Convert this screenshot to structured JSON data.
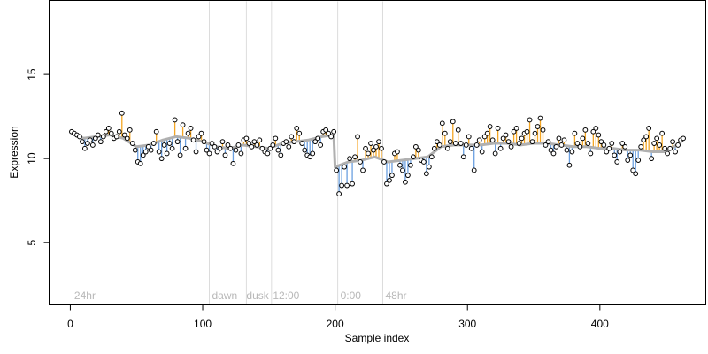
{
  "chart_data": {
    "type": "scatter",
    "title": "",
    "xlabel": "Sample index",
    "ylabel": "Expression",
    "xlim": [
      -16,
      480
    ],
    "ylim": [
      1.3,
      19.4
    ],
    "x_ticks": [
      0,
      100,
      200,
      300,
      400
    ],
    "y_ticks": [
      5,
      10,
      15
    ],
    "grid": false,
    "legend": "none",
    "baseline_color": "#b0b0b0",
    "above_color": "#f5a623",
    "below_color": "#6a9fe0",
    "point_fill": "#ffffff",
    "point_stroke": "#000000",
    "phase_boundaries": [
      105,
      133,
      152,
      202,
      236
    ],
    "phase_labels": [
      {
        "x": 3,
        "text": "24hr"
      },
      {
        "x": 107,
        "text": "dawn"
      },
      {
        "x": 133,
        "text": "dusk"
      },
      {
        "x": 153,
        "text": "12:00"
      },
      {
        "x": 204,
        "text": "0:00"
      },
      {
        "x": 238,
        "text": "48hr"
      }
    ],
    "baseline": [
      [
        1,
        11.5
      ],
      [
        10,
        11.2
      ],
      [
        20,
        11.3
      ],
      [
        30,
        11.4
      ],
      [
        40,
        11.2
      ],
      [
        50,
        10.7
      ],
      [
        60,
        10.8
      ],
      [
        70,
        11.1
      ],
      [
        80,
        11.3
      ],
      [
        90,
        11.2
      ],
      [
        100,
        11.0
      ],
      [
        110,
        10.7
      ],
      [
        120,
        10.6
      ],
      [
        130,
        10.8
      ],
      [
        140,
        10.7
      ],
      [
        150,
        10.6
      ],
      [
        160,
        10.9
      ],
      [
        170,
        11.0
      ],
      [
        180,
        11.1
      ],
      [
        190,
        11.3
      ],
      [
        199,
        11.4
      ],
      [
        200,
        9.5
      ],
      [
        210,
        9.8
      ],
      [
        220,
        9.9
      ],
      [
        230,
        10.1
      ],
      [
        240,
        9.8
      ],
      [
        250,
        9.9
      ],
      [
        260,
        10.0
      ],
      [
        270,
        10.1
      ],
      [
        280,
        10.7
      ],
      [
        290,
        10.8
      ],
      [
        300,
        10.8
      ],
      [
        310,
        10.8
      ],
      [
        320,
        10.9
      ],
      [
        330,
        10.9
      ],
      [
        340,
        10.8
      ],
      [
        350,
        10.9
      ],
      [
        360,
        10.9
      ],
      [
        370,
        10.8
      ],
      [
        380,
        10.7
      ],
      [
        390,
        10.7
      ],
      [
        400,
        10.6
      ],
      [
        410,
        10.6
      ],
      [
        420,
        10.5
      ],
      [
        430,
        10.5
      ],
      [
        440,
        10.4
      ],
      [
        450,
        10.4
      ],
      [
        460,
        10.9
      ],
      [
        464,
        11.2
      ]
    ],
    "points": [
      [
        1,
        11.6
      ],
      [
        3,
        11.5
      ],
      [
        5,
        11.4
      ],
      [
        7,
        11.3
      ],
      [
        9,
        11.0
      ],
      [
        11,
        10.6
      ],
      [
        13,
        10.9
      ],
      [
        15,
        11.1
      ],
      [
        17,
        10.8
      ],
      [
        19,
        11.2
      ],
      [
        21,
        11.4
      ],
      [
        23,
        11.0
      ],
      [
        25,
        11.3
      ],
      [
        27,
        11.6
      ],
      [
        29,
        11.8
      ],
      [
        31,
        11.5
      ],
      [
        33,
        11.2
      ],
      [
        35,
        11.3
      ],
      [
        37,
        11.6
      ],
      [
        39,
        12.7
      ],
      [
        41,
        11.4
      ],
      [
        43,
        11.2
      ],
      [
        45,
        11.7
      ],
      [
        47,
        10.9
      ],
      [
        49,
        10.5
      ],
      [
        51,
        9.8
      ],
      [
        53,
        9.7
      ],
      [
        55,
        10.2
      ],
      [
        57,
        10.4
      ],
      [
        59,
        10.7
      ],
      [
        61,
        10.5
      ],
      [
        63,
        10.9
      ],
      [
        65,
        11.6
      ],
      [
        67,
        10.4
      ],
      [
        69,
        10.0
      ],
      [
        71,
        10.8
      ],
      [
        73,
        10.3
      ],
      [
        75,
        10.9
      ],
      [
        77,
        10.6
      ],
      [
        79,
        12.3
      ],
      [
        81,
        11.0
      ],
      [
        83,
        10.2
      ],
      [
        85,
        12.0
      ],
      [
        87,
        10.6
      ],
      [
        89,
        11.5
      ],
      [
        91,
        11.8
      ],
      [
        93,
        11.1
      ],
      [
        95,
        10.4
      ],
      [
        97,
        11.3
      ],
      [
        99,
        11.5
      ],
      [
        101,
        11.0
      ],
      [
        103,
        10.5
      ],
      [
        105,
        10.3
      ],
      [
        107,
        10.9
      ],
      [
        109,
        10.7
      ],
      [
        111,
        10.4
      ],
      [
        113,
        10.6
      ],
      [
        115,
        11.0
      ],
      [
        117,
        10.2
      ],
      [
        119,
        10.8
      ],
      [
        121,
        10.6
      ],
      [
        123,
        9.7
      ],
      [
        125,
        10.5
      ],
      [
        127,
        10.8
      ],
      [
        129,
        10.3
      ],
      [
        131,
        11.1
      ],
      [
        133,
        11.2
      ],
      [
        135,
        10.9
      ],
      [
        137,
        10.7
      ],
      [
        139,
        11.0
      ],
      [
        141,
        10.8
      ],
      [
        143,
        11.1
      ],
      [
        145,
        10.6
      ],
      [
        147,
        10.4
      ],
      [
        149,
        10.3
      ],
      [
        151,
        10.6
      ],
      [
        153,
        10.8
      ],
      [
        155,
        11.2
      ],
      [
        157,
        10.5
      ],
      [
        159,
        10.2
      ],
      [
        161,
        10.9
      ],
      [
        163,
        11.0
      ],
      [
        165,
        10.7
      ],
      [
        167,
        11.3
      ],
      [
        169,
        11.0
      ],
      [
        171,
        11.8
      ],
      [
        173,
        11.5
      ],
      [
        175,
        10.9
      ],
      [
        177,
        10.5
      ],
      [
        179,
        10.2
      ],
      [
        181,
        10.1
      ],
      [
        183,
        10.3
      ],
      [
        185,
        11.0
      ],
      [
        187,
        11.2
      ],
      [
        189,
        10.8
      ],
      [
        191,
        11.6
      ],
      [
        193,
        11.7
      ],
      [
        195,
        11.5
      ],
      [
        197,
        11.3
      ],
      [
        199,
        11.6
      ],
      [
        201,
        9.3
      ],
      [
        203,
        7.9
      ],
      [
        205,
        8.4
      ],
      [
        207,
        9.5
      ],
      [
        209,
        8.4
      ],
      [
        211,
        10.0
      ],
      [
        213,
        8.5
      ],
      [
        215,
        10.1
      ],
      [
        217,
        11.3
      ],
      [
        219,
        9.8
      ],
      [
        221,
        9.3
      ],
      [
        223,
        10.6
      ],
      [
        225,
        10.3
      ],
      [
        227,
        10.9
      ],
      [
        229,
        10.5
      ],
      [
        231,
        10.7
      ],
      [
        233,
        11.0
      ],
      [
        235,
        10.6
      ],
      [
        237,
        9.8
      ],
      [
        239,
        8.5
      ],
      [
        241,
        8.7
      ],
      [
        243,
        9.0
      ],
      [
        245,
        10.3
      ],
      [
        247,
        10.4
      ],
      [
        249,
        9.6
      ],
      [
        251,
        9.3
      ],
      [
        253,
        8.6
      ],
      [
        255,
        9.0
      ],
      [
        257,
        9.6
      ],
      [
        259,
        10.1
      ],
      [
        261,
        10.7
      ],
      [
        263,
        10.5
      ],
      [
        265,
        9.9
      ],
      [
        267,
        9.8
      ],
      [
        269,
        9.1
      ],
      [
        271,
        9.5
      ],
      [
        273,
        10.1
      ],
      [
        275,
        10.6
      ],
      [
        277,
        11.0
      ],
      [
        279,
        10.8
      ],
      [
        281,
        12.1
      ],
      [
        283,
        11.5
      ],
      [
        285,
        10.6
      ],
      [
        287,
        11.0
      ],
      [
        289,
        12.2
      ],
      [
        291,
        10.9
      ],
      [
        293,
        11.7
      ],
      [
        295,
        10.9
      ],
      [
        297,
        10.1
      ],
      [
        299,
        10.8
      ],
      [
        301,
        11.3
      ],
      [
        303,
        10.6
      ],
      [
        305,
        9.3
      ],
      [
        307,
        10.8
      ],
      [
        309,
        11.1
      ],
      [
        311,
        10.4
      ],
      [
        313,
        11.3
      ],
      [
        315,
        11.5
      ],
      [
        317,
        11.9
      ],
      [
        319,
        11.1
      ],
      [
        321,
        10.3
      ],
      [
        323,
        11.8
      ],
      [
        325,
        10.6
      ],
      [
        327,
        11.2
      ],
      [
        329,
        11.4
      ],
      [
        331,
        11.0
      ],
      [
        333,
        10.7
      ],
      [
        335,
        11.6
      ],
      [
        337,
        11.8
      ],
      [
        339,
        10.9
      ],
      [
        341,
        11.2
      ],
      [
        343,
        11.5
      ],
      [
        345,
        11.6
      ],
      [
        347,
        12.3
      ],
      [
        349,
        11.0
      ],
      [
        351,
        11.5
      ],
      [
        353,
        11.9
      ],
      [
        355,
        12.4
      ],
      [
        357,
        11.7
      ],
      [
        359,
        10.8
      ],
      [
        361,
        11.0
      ],
      [
        363,
        10.5
      ],
      [
        365,
        10.3
      ],
      [
        367,
        10.7
      ],
      [
        369,
        11.2
      ],
      [
        371,
        10.8
      ],
      [
        373,
        11.1
      ],
      [
        375,
        10.5
      ],
      [
        377,
        9.6
      ],
      [
        379,
        10.4
      ],
      [
        381,
        11.5
      ],
      [
        383,
        10.9
      ],
      [
        385,
        10.7
      ],
      [
        387,
        11.2
      ],
      [
        389,
        11.7
      ],
      [
        391,
        10.9
      ],
      [
        393,
        10.3
      ],
      [
        395,
        11.6
      ],
      [
        397,
        11.8
      ],
      [
        399,
        11.4
      ],
      [
        401,
        11.0
      ],
      [
        403,
        10.8
      ],
      [
        405,
        10.4
      ],
      [
        407,
        10.6
      ],
      [
        409,
        10.9
      ],
      [
        411,
        10.2
      ],
      [
        413,
        9.8
      ],
      [
        415,
        10.4
      ],
      [
        417,
        10.9
      ],
      [
        419,
        10.7
      ],
      [
        421,
        9.9
      ],
      [
        423,
        10.2
      ],
      [
        425,
        9.3
      ],
      [
        427,
        9.1
      ],
      [
        429,
        9.9
      ],
      [
        431,
        10.7
      ],
      [
        433,
        11.1
      ],
      [
        435,
        11.3
      ],
      [
        437,
        11.8
      ],
      [
        439,
        10.0
      ],
      [
        441,
        10.9
      ],
      [
        443,
        11.2
      ],
      [
        445,
        10.8
      ],
      [
        447,
        11.5
      ],
      [
        449,
        10.6
      ],
      [
        451,
        10.3
      ],
      [
        453,
        10.6
      ],
      [
        455,
        11.0
      ],
      [
        457,
        10.4
      ],
      [
        459,
        10.8
      ],
      [
        461,
        11.1
      ],
      [
        463,
        11.2
      ]
    ]
  }
}
